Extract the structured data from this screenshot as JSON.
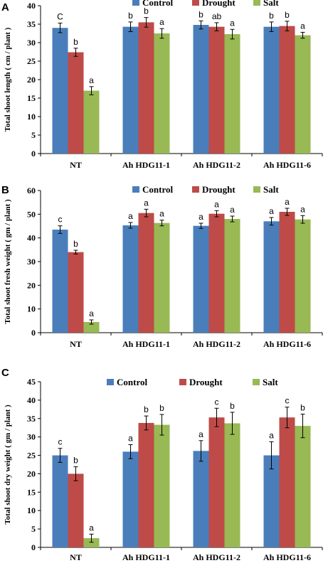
{
  "colors": {
    "Control": "#4a7ebb",
    "Drought": "#be4b48",
    "Salt": "#98b954"
  },
  "chart_data": [
    {
      "type": "bar",
      "panel": "A",
      "ylabel": "Total shoot length ( cm / plant )",
      "ylim": [
        0,
        40
      ],
      "yticks": [
        0,
        5,
        10,
        15,
        20,
        25,
        30,
        35,
        40
      ],
      "categories": [
        "NT",
        "Ah HDG11-1",
        "Ah HDG11-2",
        "Ah HDG11-6"
      ],
      "series": [
        {
          "name": "Control",
          "values": [
            34,
            34.3,
            34.8,
            34.3
          ],
          "errors": [
            1.3,
            1.3,
            1.1,
            1.3
          ],
          "letters": [
            "C",
            "b",
            "b",
            "b"
          ]
        },
        {
          "name": "Drought",
          "values": [
            27.4,
            35.5,
            34.3,
            34.5
          ],
          "errors": [
            1.1,
            1.3,
            1.1,
            1.3
          ],
          "letters": [
            "b",
            "b",
            "ab",
            "b"
          ]
        },
        {
          "name": "Salt",
          "values": [
            17,
            32.5,
            32.3,
            32
          ],
          "errors": [
            1.1,
            1.3,
            1.3,
            0.8
          ],
          "letters": [
            "a",
            "a",
            "a",
            "a"
          ]
        }
      ],
      "legend": "top-right"
    },
    {
      "type": "bar",
      "panel": "B",
      "ylabel": "Total shoot fresh weight ( gm / plant )",
      "ylim": [
        0,
        60
      ],
      "yticks": [
        0,
        10,
        20,
        30,
        40,
        50,
        60
      ],
      "categories": [
        "NT",
        "Ah HDG11-1",
        "Ah HDG11-2",
        "Ah HDG11-6"
      ],
      "series": [
        {
          "name": "Control",
          "values": [
            43.5,
            45.3,
            45.1,
            47
          ],
          "errors": [
            1.6,
            1.2,
            1.1,
            1.6
          ],
          "letters": [
            "c",
            "a",
            "a",
            "a"
          ]
        },
        {
          "name": "Drought",
          "values": [
            34,
            50.5,
            50.2,
            51
          ],
          "errors": [
            0.8,
            1.6,
            1.3,
            1.5
          ],
          "letters": [
            "b",
            "a",
            "a",
            "a"
          ]
        },
        {
          "name": "Salt",
          "values": [
            4.5,
            46.3,
            48,
            47.8
          ],
          "errors": [
            0.9,
            1.2,
            1.2,
            1.6
          ],
          "letters": [
            "a",
            "a",
            "a",
            "a"
          ]
        }
      ],
      "legend": "top-right"
    },
    {
      "type": "bar",
      "panel": "C",
      "ylabel": "Total shoot dry weight ( gm / plant )",
      "ylim": [
        0,
        45
      ],
      "yticks": [
        0,
        5,
        10,
        15,
        20,
        25,
        30,
        35,
        40,
        45
      ],
      "categories": [
        "NT",
        "Ah HDG11-1",
        "Ah HDG11-2",
        "Ah HDG11-6"
      ],
      "series": [
        {
          "name": "Control",
          "values": [
            25,
            26,
            26.2,
            25
          ],
          "errors": [
            1.9,
            1.9,
            2.8,
            3.7
          ],
          "letters": [
            "c",
            "a",
            "a",
            "a"
          ]
        },
        {
          "name": "Drought",
          "values": [
            20,
            33.8,
            35.3,
            35.3
          ],
          "errors": [
            1.9,
            1.9,
            2.5,
            2.8
          ],
          "letters": [
            "b",
            "b",
            "c",
            "c"
          ]
        },
        {
          "name": "Salt",
          "values": [
            2.5,
            33.3,
            33.7,
            33
          ],
          "errors": [
            1.1,
            2.8,
            3,
            3.2
          ],
          "letters": [
            "a",
            "b",
            "b",
            "b"
          ]
        }
      ],
      "legend": "top-right"
    }
  ]
}
